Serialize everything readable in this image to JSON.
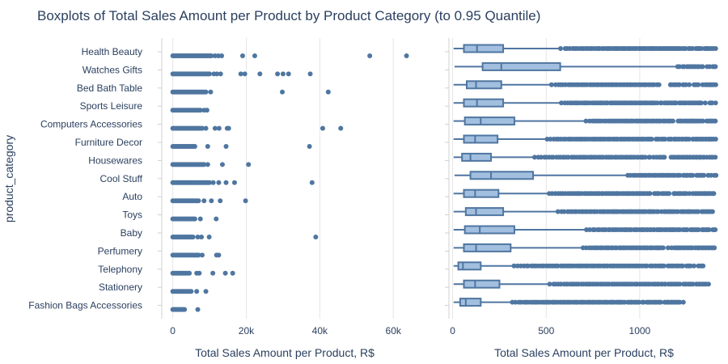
{
  "title": "Boxplots of Total Sales Amount per Product by Product Category (to 0.95 Quantile)",
  "colors": {
    "marker": "#4f76a1",
    "box_fill": "#a3bfdf",
    "box_line": "#4f76a1",
    "grid": "#e5e5e5",
    "text": "#2a3f5f"
  },
  "chart_data": [
    {
      "type": "strip",
      "title": "",
      "xlabel": "Total Sales Amount per Product, R$",
      "ylabel": "product_category",
      "xlim": [
        -3000,
        67000
      ],
      "xticks": [
        0,
        20000,
        40000,
        60000
      ],
      "xtick_labels": [
        "0",
        "20k",
        "40k",
        "60k"
      ],
      "grid": true,
      "categories": [
        "Health Beauty",
        "Watches Gifts",
        "Bed Bath Table",
        "Sports Leisure",
        "Computers Accessories",
        "Furniture Decor",
        "Housewares",
        "Cool Stuff",
        "Auto",
        "Toys",
        "Baby",
        "Perfumery",
        "Telephony",
        "Stationery",
        "Fashion Bags Accessories"
      ],
      "series": [
        {
          "category": "Health Beauty",
          "dense_max": 10500,
          "outliers": [
            11500,
            12400,
            13300,
            19000,
            22300,
            53600,
            63600
          ]
        },
        {
          "category": "Watches Gifts",
          "dense_max": 10000,
          "outliers": [
            11200,
            12000,
            13000,
            18500,
            19600,
            23700,
            28500,
            30000,
            31500,
            37400
          ]
        },
        {
          "category": "Bed Bath Table",
          "dense_max": 9000,
          "outliers": [
            10300,
            29800,
            42300
          ]
        },
        {
          "category": "Sports Leisure",
          "dense_max": 7500,
          "outliers": [
            8500,
            9300
          ]
        },
        {
          "category": "Computers Accessories",
          "dense_max": 8000,
          "outliers": [
            9000,
            11500,
            12600,
            14800,
            15200,
            40800,
            45700
          ]
        },
        {
          "category": "Furniture Decor",
          "dense_max": 6000,
          "outliers": [
            9500,
            14500,
            37200
          ]
        },
        {
          "category": "Housewares",
          "dense_max": 8500,
          "outliers": [
            9500,
            13500,
            20600
          ]
        },
        {
          "category": "Cool Stuff",
          "dense_max": 10000,
          "outliers": [
            11000,
            12500,
            14500,
            16800,
            37900
          ]
        },
        {
          "category": "Auto",
          "dense_max": 7000,
          "outliers": [
            8500,
            10500,
            12900,
            19800
          ]
        },
        {
          "category": "Toys",
          "dense_max": 6000,
          "outliers": [
            7500,
            11800
          ]
        },
        {
          "category": "Baby",
          "dense_max": 5500,
          "outliers": [
            6800,
            7800,
            9900,
            38900
          ]
        },
        {
          "category": "Perfumery",
          "dense_max": 7000,
          "outliers": [
            8000,
            11900,
            12500
          ]
        },
        {
          "category": "Telephony",
          "dense_max": 4500,
          "outliers": [
            6500,
            7200,
            10900,
            14300,
            16300
          ]
        },
        {
          "category": "Stationery",
          "dense_max": 5000,
          "outliers": [
            6500,
            9000
          ]
        },
        {
          "category": "Fashion Bags Accessories",
          "dense_max": 3200,
          "outliers": [
            6800
          ]
        }
      ]
    },
    {
      "type": "box",
      "title": "",
      "xlabel": "Total Sales Amount per Product, R$",
      "ylabel": "",
      "xlim": [
        -20,
        1420
      ],
      "xticks": [
        0,
        500,
        1000
      ],
      "xtick_labels": [
        "0",
        "500",
        "1000"
      ],
      "grid": true,
      "categories": [
        "Health Beauty",
        "Watches Gifts",
        "Bed Bath Table",
        "Sports Leisure",
        "Computers Accessories",
        "Furniture Decor",
        "Housewares",
        "Cool Stuff",
        "Auto",
        "Toys",
        "Baby",
        "Perfumery",
        "Telephony",
        "Stationery",
        "Fashion Bags Accessories"
      ],
      "series": [
        {
          "category": "Health Beauty",
          "whisker_low": 5,
          "q1": 60,
          "median": 130,
          "q3": 270,
          "whisker_high": 575,
          "outlier_start": 580,
          "outlier_end": 1405
        },
        {
          "category": "Watches Gifts",
          "whisker_low": 10,
          "q1": 160,
          "median": 260,
          "q3": 575,
          "whisker_high": 1195,
          "outlier_start": 1200,
          "outlier_end": 1405
        },
        {
          "category": "Bed Bath Table",
          "whisker_low": 5,
          "q1": 75,
          "median": 125,
          "q3": 260,
          "whisker_high": 525,
          "outlier_start": 530,
          "outlier_end": 1405
        },
        {
          "category": "Sports Leisure",
          "whisker_low": 5,
          "q1": 60,
          "median": 130,
          "q3": 270,
          "whisker_high": 575,
          "outlier_start": 580,
          "outlier_end": 1405
        },
        {
          "category": "Computers Accessories",
          "whisker_low": 5,
          "q1": 65,
          "median": 150,
          "q3": 330,
          "whisker_high": 710,
          "outlier_start": 715,
          "outlier_end": 1405
        },
        {
          "category": "Furniture Decor",
          "whisker_low": 5,
          "q1": 60,
          "median": 120,
          "q3": 240,
          "whisker_high": 500,
          "outlier_start": 505,
          "outlier_end": 1405
        },
        {
          "category": "Housewares",
          "whisker_low": 5,
          "q1": 50,
          "median": 95,
          "q3": 205,
          "whisker_high": 435,
          "outlier_start": 440,
          "outlier_end": 1405
        },
        {
          "category": "Cool Stuff",
          "whisker_low": 10,
          "q1": 95,
          "median": 205,
          "q3": 430,
          "whisker_high": 930,
          "outlier_start": 935,
          "outlier_end": 1405
        },
        {
          "category": "Auto",
          "whisker_low": 5,
          "q1": 60,
          "median": 120,
          "q3": 245,
          "whisker_high": 510,
          "outlier_start": 515,
          "outlier_end": 1405
        },
        {
          "category": "Toys",
          "whisker_low": 5,
          "q1": 70,
          "median": 125,
          "q3": 270,
          "whisker_high": 560,
          "outlier_start": 565,
          "outlier_end": 1395
        },
        {
          "category": "Baby",
          "whisker_low": 5,
          "q1": 65,
          "median": 145,
          "q3": 330,
          "whisker_high": 710,
          "outlier_start": 715,
          "outlier_end": 1405
        },
        {
          "category": "Perfumery",
          "whisker_low": 5,
          "q1": 60,
          "median": 125,
          "q3": 310,
          "whisker_high": 690,
          "outlier_start": 695,
          "outlier_end": 1405
        },
        {
          "category": "Telephony",
          "whisker_low": 5,
          "q1": 30,
          "median": 55,
          "q3": 150,
          "whisker_high": 325,
          "outlier_start": 330,
          "outlier_end": 1340
        },
        {
          "category": "Stationery",
          "whisker_low": 5,
          "q1": 60,
          "median": 120,
          "q3": 250,
          "whisker_high": 515,
          "outlier_start": 520,
          "outlier_end": 1365
        },
        {
          "category": "Fashion Bags Accessories",
          "whisker_low": 5,
          "q1": 40,
          "median": 70,
          "q3": 150,
          "whisker_high": 315,
          "outlier_start": 320,
          "outlier_end": 1230
        }
      ]
    }
  ]
}
